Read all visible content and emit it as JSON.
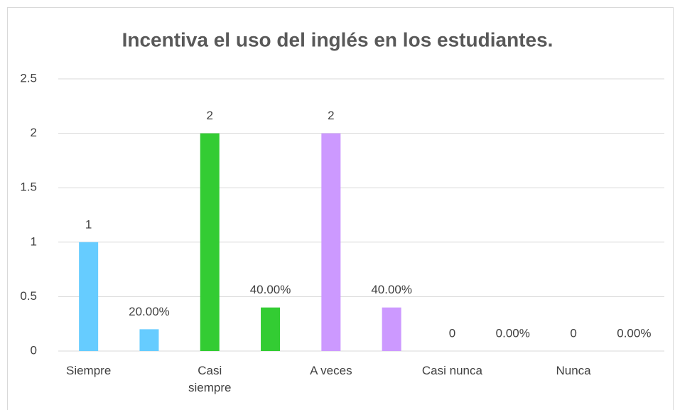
{
  "chart_data": {
    "type": "bar",
    "title": "Incentiva el uso del inglés en los estudiantes.",
    "categories": [
      "Siempre",
      null,
      "Casi siempre",
      null,
      "A veces",
      null,
      "Casi nunca",
      null,
      "Nunca",
      null
    ],
    "values": [
      1,
      0.2,
      2,
      0.4,
      2,
      0.4,
      0,
      0,
      0,
      0
    ],
    "value_labels": [
      "1",
      "20.00%",
      "2",
      "40.00%",
      "2",
      "40.00%",
      "0",
      "0.00%",
      "0",
      "0.00%"
    ],
    "colors": [
      "#66ccff",
      "#66ccff",
      "#33cc33",
      "#33cc33",
      "#cc99ff",
      "#cc99ff",
      null,
      null,
      null,
      null
    ],
    "ylim": [
      0,
      2.5
    ],
    "yticks": [
      0,
      0.5,
      1,
      1.5,
      2,
      2.5
    ],
    "grid": true
  }
}
